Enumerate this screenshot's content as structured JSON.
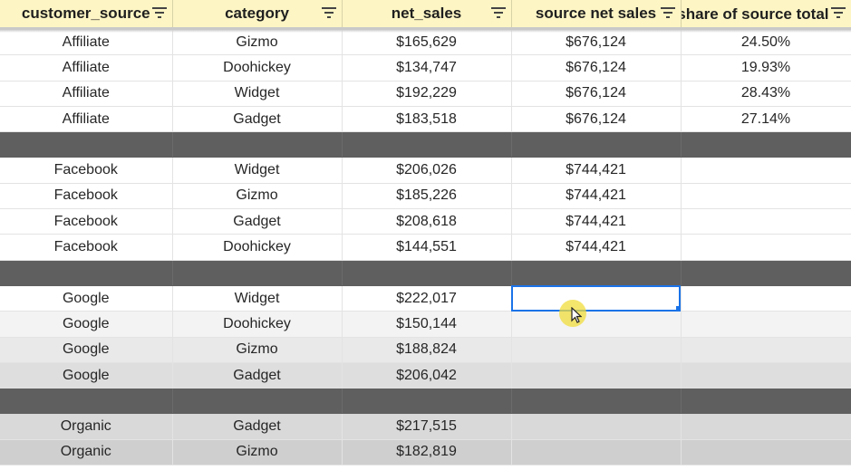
{
  "columns": [
    {
      "label": "customer_source"
    },
    {
      "label": "category"
    },
    {
      "label": "net_sales"
    },
    {
      "label": "source net sales"
    },
    {
      "label": "share of source total"
    }
  ],
  "rows": [
    {
      "type": "data",
      "shade": "g0",
      "cells": [
        "Affiliate",
        "Gizmo",
        "$165,629",
        "$676,124",
        "24.50%"
      ]
    },
    {
      "type": "data",
      "shade": "g0",
      "cells": [
        "Affiliate",
        "Doohickey",
        "$134,747",
        "$676,124",
        "19.93%"
      ]
    },
    {
      "type": "data",
      "shade": "g0",
      "cells": [
        "Affiliate",
        "Widget",
        "$192,229",
        "$676,124",
        "28.43%"
      ]
    },
    {
      "type": "data",
      "shade": "g0",
      "cells": [
        "Affiliate",
        "Gadget",
        "$183,518",
        "$676,124",
        "27.14%"
      ]
    },
    {
      "type": "gap"
    },
    {
      "type": "data",
      "shade": "g0",
      "cells": [
        "Facebook",
        "Widget",
        "$206,026",
        "$744,421",
        ""
      ]
    },
    {
      "type": "data",
      "shade": "g0",
      "cells": [
        "Facebook",
        "Gizmo",
        "$185,226",
        "$744,421",
        ""
      ]
    },
    {
      "type": "data",
      "shade": "g0",
      "cells": [
        "Facebook",
        "Gadget",
        "$208,618",
        "$744,421",
        ""
      ]
    },
    {
      "type": "data",
      "shade": "g0",
      "cells": [
        "Facebook",
        "Doohickey",
        "$144,551",
        "$744,421",
        ""
      ]
    },
    {
      "type": "gap"
    },
    {
      "type": "data",
      "shade": "g0",
      "cells": [
        "Google",
        "Widget",
        "$222,017",
        "",
        ""
      ],
      "selected_col": 3
    },
    {
      "type": "data",
      "shade": "g1",
      "cells": [
        "Google",
        "Doohickey",
        "$150,144",
        "",
        ""
      ]
    },
    {
      "type": "data",
      "shade": "g2",
      "cells": [
        "Google",
        "Gizmo",
        "$188,824",
        "",
        ""
      ]
    },
    {
      "type": "data",
      "shade": "g3",
      "cells": [
        "Google",
        "Gadget",
        "$206,042",
        "",
        ""
      ]
    },
    {
      "type": "gap"
    },
    {
      "type": "data",
      "shade": "o0",
      "cells": [
        "Organic",
        "Gadget",
        "$217,515",
        "",
        ""
      ]
    },
    {
      "type": "data",
      "shade": "o1",
      "cells": [
        "Organic",
        "Gizmo",
        "$182,819",
        "",
        ""
      ]
    }
  ],
  "colors": {
    "header_bg": "#fdf5c4",
    "separator_row": "#5f5f5f",
    "selection": "#1a73e8",
    "cursor_highlight": "#f0dc3c"
  },
  "icons": {
    "filter": "filter-icon",
    "cursor": "mouse-pointer-icon"
  }
}
